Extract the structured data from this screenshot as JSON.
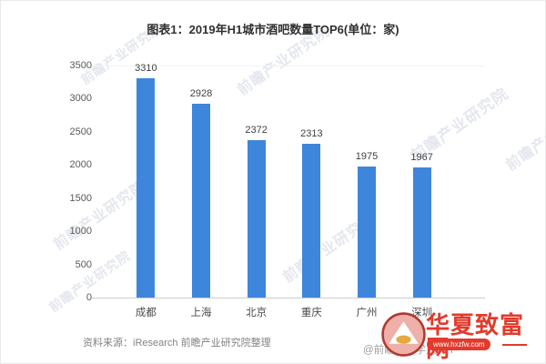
{
  "title": "图表1：2019年H1城市酒吧数量TOP6(单位：家)",
  "chart_data": {
    "type": "bar",
    "title": "图表1：2019年H1城市酒吧数量TOP6(单位：家)",
    "categories": [
      "成都",
      "上海",
      "北京",
      "重庆",
      "广州",
      "深圳"
    ],
    "values": [
      3310,
      2928,
      2372,
      2313,
      1975,
      1967
    ],
    "xlabel": "",
    "ylabel": "",
    "ylim": [
      0,
      3500
    ],
    "yticks": [
      0,
      500,
      1000,
      1500,
      2000,
      2500,
      3000,
      3500
    ],
    "grid": false,
    "legend": "none",
    "bar_color": "#3e86db"
  },
  "footer": {
    "source_note": "资料来源：iResearch 前瞻产业研究院整理",
    "credit": "@前瞻经济学人APP"
  },
  "watermarks": {
    "diagonal_text": "前瞻产业研究院"
  },
  "site_badge": {
    "name": "华夏致富网",
    "url": "www.hxzfw.com",
    "accent_color": "#e23a2c"
  }
}
